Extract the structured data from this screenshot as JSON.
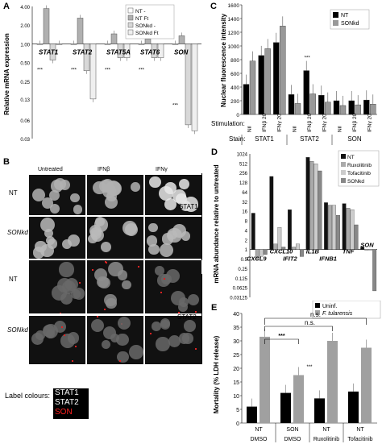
{
  "panels": {
    "a": {
      "letter": "A",
      "ylabel": "Relative mRNA expression",
      "yticks": [
        "4.00",
        "2.00",
        "1.00",
        "0.50",
        "0.25",
        "0.13",
        "0.06",
        "0.03"
      ],
      "legend": [
        "NT -",
        "NT Ft",
        "SONkd -",
        "SONkd Ft"
      ],
      "gene_labels": [
        "STAT1",
        "STAT2",
        "STAT5A",
        "STAT6",
        "SON"
      ],
      "stars": [
        "***",
        "***",
        "***",
        "***",
        "***"
      ]
    },
    "b": {
      "letter": "B",
      "col_headers": [
        "Untreated",
        "IFNβ",
        "IFNγ"
      ],
      "row_labels": [
        "NT",
        "SONkd",
        "NT",
        "SONkd"
      ],
      "group_labels": [
        "STAT1",
        "STAT2"
      ],
      "label_colours_title": "Label colours:",
      "label_colours": [
        {
          "text": "STAT1",
          "color": "#ffffff"
        },
        {
          "text": "STAT2",
          "color": "#ffffff"
        },
        {
          "text": "SON",
          "color": "#ff2020"
        }
      ]
    },
    "c": {
      "letter": "C",
      "ylabel": "Nuclear fluorescence intensity",
      "stimulation_label": "Stimulation:",
      "stain_label": "Stain:",
      "stains": [
        "STAT1",
        "STAT2",
        "SON"
      ],
      "star": "***"
    },
    "d": {
      "letter": "D",
      "ylabel": "mRNA abundance relative to untreated",
      "upper_labels": [
        "CXCL10",
        "IL1B",
        "TNF",
        "SON"
      ],
      "lower_labels": [
        "CXCL9",
        "IFIT2",
        "IFNB1"
      ]
    },
    "e": {
      "letter": "E",
      "ylabel": "Mortality (% LDH release)",
      "sig": [
        "n.s.",
        "n.s.",
        "***",
        "***"
      ],
      "x_top": [
        "NT",
        "SON",
        "NT",
        "NT"
      ],
      "x_bottom": [
        "DMSO",
        "DMSO",
        "Ruxolitinib",
        "Tofacitinib"
      ]
    }
  },
  "chart_data": [
    {
      "id": "A",
      "type": "bar",
      "log_scale": true,
      "ylim": [
        0.03,
        4.0
      ],
      "categories": [
        "STAT1",
        "STAT2",
        "STAT5A",
        "STAT6",
        "SON"
      ],
      "series": [
        {
          "name": "NT -",
          "values": [
            1.0,
            1.0,
            1.0,
            1.0,
            1.0
          ],
          "color": "#ffffff"
        },
        {
          "name": "NT Ft",
          "values": [
            3.7,
            2.6,
            1.45,
            1.2,
            1.35
          ],
          "color": "#b0b0b0"
        },
        {
          "name": "SONkd -",
          "values": [
            0.55,
            0.37,
            0.6,
            0.6,
            0.05
          ],
          "color": "#d8d8d8"
        },
        {
          "name": "SONkd Ft",
          "values": [
            1.0,
            0.13,
            0.6,
            0.6,
            0.04
          ],
          "color": "#efefef"
        }
      ]
    },
    {
      "id": "C",
      "type": "bar",
      "ylim": [
        0,
        1600
      ],
      "yticks": [
        0,
        200,
        400,
        600,
        800,
        1000,
        1200,
        1400,
        1600
      ],
      "categories": [
        "Nil",
        "IFNβ 20'",
        "IFNγ 20'",
        "Nil",
        "IFNβ 20'",
        "IFNγ 20'",
        "Nil",
        "IFNβ 20'",
        "IFNγ 20'"
      ],
      "series": [
        {
          "name": "NT",
          "values": [
            440,
            860,
            1050,
            290,
            640,
            280,
            200,
            200,
            210
          ],
          "color": "#000000"
        },
        {
          "name": "SONkd",
          "values": [
            780,
            960,
            1290,
            160,
            300,
            180,
            130,
            140,
            150
          ],
          "color": "#999999"
        }
      ]
    },
    {
      "id": "D",
      "type": "bar",
      "log_scale": true,
      "ylim": [
        0.03125,
        1024
      ],
      "yticks": [
        "1024",
        "512",
        "256",
        "128",
        "64",
        "32",
        "16",
        "8",
        "4",
        "2",
        "1",
        "0.5",
        "0.25",
        "0.125",
        "0.0625",
        "0.03125"
      ],
      "categories": [
        "CXCL9",
        "CXCL10",
        "IFIT2",
        "IL1B",
        "IFNB1",
        "TNF",
        "SON"
      ],
      "series": [
        {
          "name": "NT",
          "values": [
            14,
            200,
            18,
            800,
            30,
            28,
            1.2
          ],
          "color": "#111111"
        },
        {
          "name": "Ruxolitinib",
          "values": [
            0.5,
            1.5,
            1.2,
            600,
            25,
            20,
            1.0
          ],
          "color": "#aaaaaa"
        },
        {
          "name": "Tofacitinib",
          "values": [
            0.6,
            5,
            1.5,
            500,
            25,
            18,
            1.0
          ],
          "color": "#cccccc"
        },
        {
          "name": "SONkd",
          "values": [
            0.7,
            1.2,
            0.6,
            300,
            12,
            6,
            0.05
          ],
          "color": "#888888"
        }
      ]
    },
    {
      "id": "E",
      "type": "bar",
      "ylim": [
        0,
        40
      ],
      "yticks": [
        0,
        5,
        10,
        15,
        20,
        25,
        30,
        35,
        40
      ],
      "categories": [
        "NT DMSO",
        "SON DMSO",
        "NT Ruxolitinib",
        "NT Tofacitinib"
      ],
      "series": [
        {
          "name": "Uninf.",
          "values": [
            6,
            11,
            9,
            11.5
          ],
          "color": "#000000"
        },
        {
          "name": "F. tularensis",
          "values": [
            31.5,
            17.5,
            30,
            27.5
          ],
          "color": "#a0a0a0"
        }
      ]
    }
  ]
}
